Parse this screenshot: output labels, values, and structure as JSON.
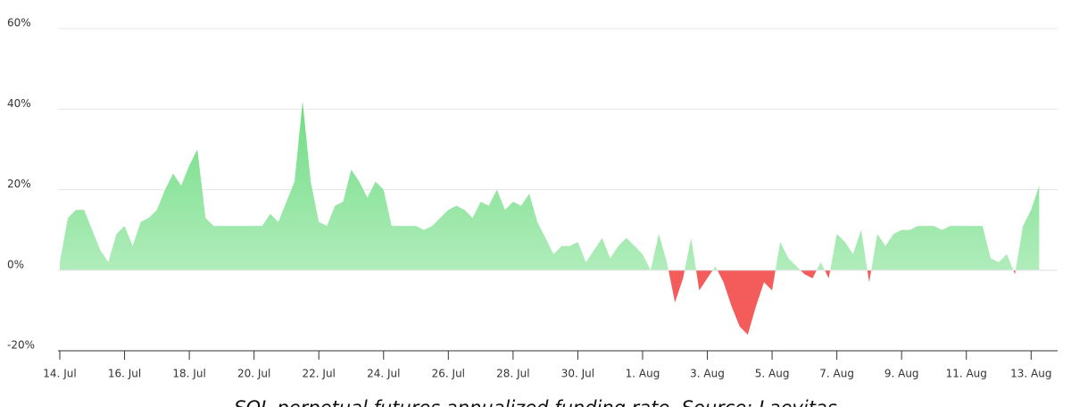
{
  "chart_data": {
    "type": "area",
    "caption": "SOL perpetual futures annualized funding rate. Source: Laevitas",
    "x": [
      0,
      0.25,
      0.5,
      0.75,
      1,
      1.25,
      1.5,
      1.75,
      2,
      2.25,
      2.5,
      2.75,
      3,
      3.25,
      3.5,
      3.75,
      4,
      4.25,
      4.5,
      4.75,
      5,
      5.25,
      5.5,
      5.75,
      6,
      6.25,
      6.5,
      6.75,
      7,
      7.25,
      7.5,
      7.75,
      8,
      8.25,
      8.5,
      8.75,
      9,
      9.25,
      9.5,
      9.75,
      10,
      10.25,
      10.5,
      10.75,
      11,
      11.25,
      11.5,
      11.75,
      12,
      12.25,
      12.5,
      12.75,
      13,
      13.25,
      13.5,
      13.75,
      14,
      14.25,
      14.5,
      14.75,
      15,
      15.25,
      15.5,
      15.75,
      16,
      16.25,
      16.5,
      16.75,
      17,
      17.25,
      17.5,
      17.75,
      18,
      18.25,
      18.5,
      18.75,
      19,
      19.25,
      19.5,
      19.75,
      20,
      20.25,
      20.5,
      20.75,
      21,
      21.25,
      21.5,
      21.75,
      22,
      22.25,
      22.5,
      22.75,
      23,
      23.25,
      23.5,
      23.75,
      24,
      24.25,
      24.5,
      24.75,
      25,
      25.25,
      25.5,
      25.75,
      26,
      26.25,
      26.5,
      26.75,
      27,
      27.25,
      27.5,
      27.75,
      28,
      28.25,
      28.5,
      28.75,
      29,
      29.25,
      29.5,
      29.75,
      30,
      30.25
    ],
    "values": [
      2,
      13,
      15,
      15,
      10,
      5,
      2,
      9,
      11,
      6,
      12,
      13,
      15,
      20,
      24,
      21,
      26,
      30,
      13,
      11,
      11,
      11,
      11,
      11,
      11,
      11,
      14,
      12,
      17,
      22,
      42,
      22,
      12,
      11,
      16,
      17,
      25,
      22,
      18,
      22,
      20,
      11,
      11,
      11,
      11,
      10,
      11,
      13,
      15,
      16,
      15,
      13,
      17,
      16,
      20,
      15,
      17,
      16,
      19,
      12,
      8,
      4,
      6,
      6,
      7,
      2,
      5,
      8,
      3,
      6,
      8,
      6,
      4,
      0,
      9,
      2,
      -8,
      -2,
      8,
      -5,
      -2,
      1,
      -3,
      -9,
      -14,
      -16,
      -9,
      -3,
      -5,
      7,
      3,
      1,
      -1,
      -2,
      2,
      -2,
      9,
      7,
      4,
      10,
      -3,
      9,
      6,
      9,
      10,
      10,
      11,
      11,
      11,
      10,
      11,
      11,
      11,
      11,
      11,
      3,
      2,
      4,
      -1,
      11,
      15,
      21
    ],
    "positive_color": "#8be39a",
    "negative_color": "#f45b5b",
    "xlim": [
      0,
      30.35
    ],
    "xticks": [
      {
        "value": 0,
        "label": "14. Jul"
      },
      {
        "value": 2,
        "label": "16. Jul"
      },
      {
        "value": 4,
        "label": "18. Jul"
      },
      {
        "value": 6,
        "label": "20. Jul"
      },
      {
        "value": 8,
        "label": "22. Jul"
      },
      {
        "value": 10,
        "label": "24. Jul"
      },
      {
        "value": 12,
        "label": "26. Jul"
      },
      {
        "value": 14,
        "label": "28. Jul"
      },
      {
        "value": 16,
        "label": "30. Jul"
      },
      {
        "value": 18,
        "label": "1. Aug"
      },
      {
        "value": 20,
        "label": "3. Aug"
      },
      {
        "value": 22,
        "label": "5. Aug"
      },
      {
        "value": 24,
        "label": "7. Aug"
      },
      {
        "value": 26,
        "label": "9. Aug"
      },
      {
        "value": 28,
        "label": "11. Aug"
      },
      {
        "value": 30,
        "label": "13. Aug"
      }
    ],
    "ylim": [
      -20,
      60
    ],
    "yticks": [
      {
        "value": -20,
        "label": "-20%"
      },
      {
        "value": 0,
        "label": "0%"
      },
      {
        "value": 20,
        "label": "20%"
      },
      {
        "value": 40,
        "label": "40%"
      },
      {
        "value": 60,
        "label": "60%"
      }
    ],
    "grid": true
  }
}
